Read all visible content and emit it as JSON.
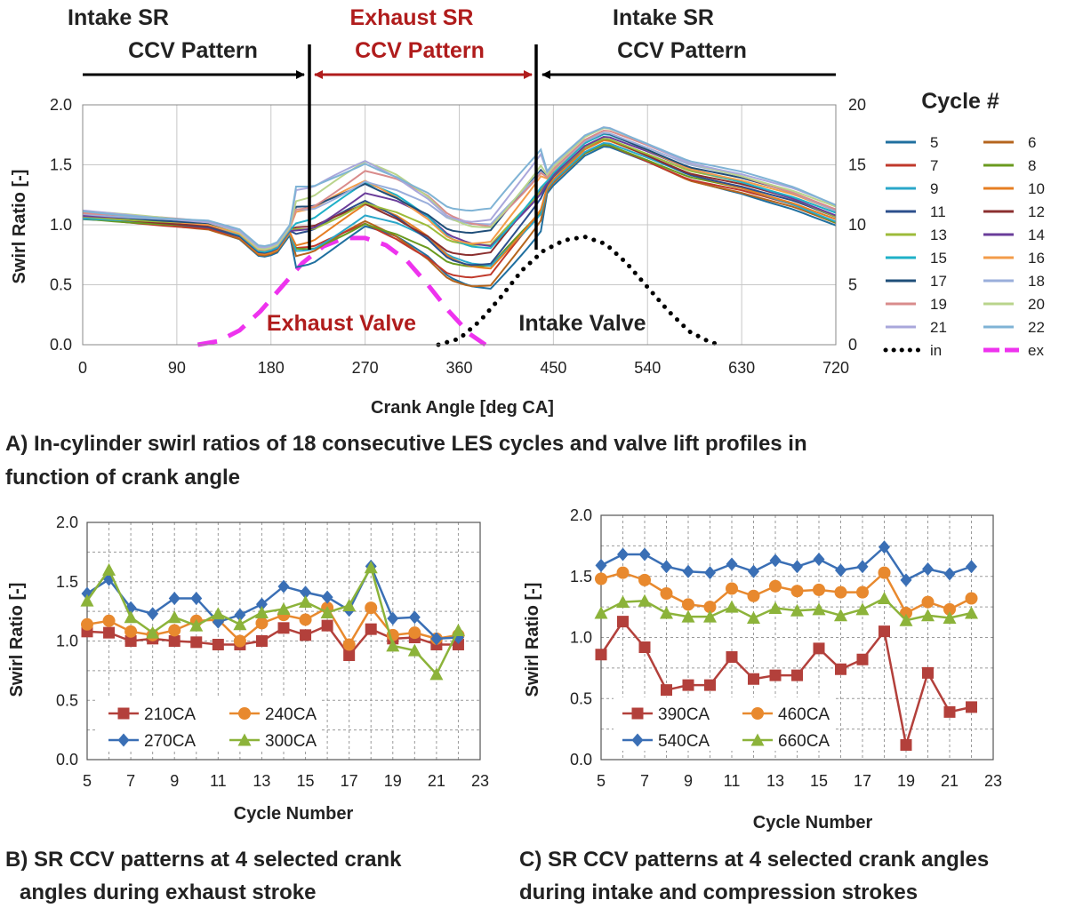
{
  "colors": {
    "black": "#000000",
    "red_dark": "#b01c1c",
    "magenta": "#ee33ee",
    "grid": "#8a8a8a",
    "s390": "#b3403b",
    "s460": "#e8892e",
    "s540": "#3a6fb5",
    "s660": "#8cb33a",
    "cycle_palette": [
      "#1f6f9f",
      "#b5651d",
      "#c0392b",
      "#6a9a1f",
      "#2aa7c9",
      "#e67e22",
      "#2c4f8c",
      "#8b2f2f",
      "#9dbb3a",
      "#6a3d9a",
      "#1fb0c7",
      "#f39c4a",
      "#1f4e79",
      "#9aaedb",
      "#d98c8c",
      "#b9d48c",
      "#a9a7db",
      "#7fb3d5"
    ]
  },
  "panelA": {
    "top_labels": [
      {
        "line1": "Intake SR",
        "line2": "CCV Pattern",
        "color": "#000000"
      },
      {
        "line1": "Exhaust SR",
        "line2": "CCV Pattern",
        "color": "#b01c1c"
      },
      {
        "line1": "Intake SR",
        "line2": "CCV Pattern",
        "color": "#000000"
      }
    ],
    "exhaust_valve_label": "Exhaust Valve",
    "intake_valve_label": "Intake Valve",
    "legend_title": "Cycle #",
    "caption_line1": "A) In-cylinder swirl ratios of 18 consecutive LES cycles and valve lift profiles in",
    "caption_line2": "function of crank angle"
  },
  "panelB": {
    "caption_line1": "B) SR CCV patterns at 4 selected crank",
    "caption_line2": "angles during exhaust stroke"
  },
  "panelC": {
    "caption_line1": "C) SR CCV patterns at 4 selected crank angles",
    "caption_line2": "during intake and compression strokes"
  },
  "chart_data": [
    {
      "type": "line",
      "xlabel": "Crank Angle  [deg CA]",
      "ylabel": "Swirl Ratio  [-]",
      "xlim": [
        0,
        720
      ],
      "ylim": [
        0,
        2.0
      ],
      "y2lim": [
        0,
        20
      ],
      "xticks": [
        0,
        90,
        180,
        270,
        360,
        450,
        540,
        630,
        720
      ],
      "xtick_labels": [
        "0",
        "90",
        "180",
        "270",
        "360",
        "450",
        "540",
        "630",
        "720"
      ],
      "yticks": [
        0,
        0.5,
        1.0,
        1.5,
        2.0
      ],
      "ytick_labels": [
        "0.0",
        "0.5",
        "1.0",
        "1.5",
        "2.0"
      ],
      "y2ticks": [
        0,
        5,
        10,
        15,
        20
      ],
      "y2tick_labels": [
        "0",
        "5",
        "10",
        "15",
        "20"
      ],
      "grid": true,
      "legend_position": "right",
      "cycle_x": [
        0,
        60,
        120,
        150,
        170,
        185,
        200,
        220,
        250,
        270,
        300,
        330,
        350,
        370,
        390,
        410,
        430,
        450,
        480,
        500,
        540,
        580,
        630,
        680,
        720
      ],
      "cycle_base": [
        1.08,
        1.04,
        1.0,
        0.92,
        0.77,
        0.8,
        0.98,
        1.0,
        1.15,
        1.25,
        1.15,
        1.0,
        0.85,
        0.8,
        0.8,
        1.0,
        1.2,
        1.42,
        1.66,
        1.74,
        1.6,
        1.45,
        1.35,
        1.22,
        1.08
      ],
      "series": [
        {
          "name": "5"
        },
        {
          "name": "6"
        },
        {
          "name": "7"
        },
        {
          "name": "8"
        },
        {
          "name": "9"
        },
        {
          "name": "10"
        },
        {
          "name": "11"
        },
        {
          "name": "12"
        },
        {
          "name": "13"
        },
        {
          "name": "14"
        },
        {
          "name": "15"
        },
        {
          "name": "16"
        },
        {
          "name": "17"
        },
        {
          "name": "18"
        },
        {
          "name": "19"
        },
        {
          "name": "20"
        },
        {
          "name": "21"
        },
        {
          "name": "22"
        }
      ],
      "valve_lift": [
        {
          "name": "in",
          "axis": "y2",
          "x": [
            340,
            360,
            380,
            400,
            420,
            440,
            460,
            480,
            500,
            520,
            540,
            560,
            580,
            600,
            610
          ],
          "y": [
            0,
            0.5,
            2.0,
            4.0,
            6.2,
            7.8,
            8.7,
            9.0,
            8.4,
            6.8,
            4.8,
            2.8,
            1.1,
            0.2,
            0
          ]
        },
        {
          "name": "ex",
          "axis": "y2",
          "x": [
            110,
            130,
            150,
            170,
            190,
            210,
            230,
            250,
            270,
            290,
            310,
            330,
            350,
            370,
            385
          ],
          "y": [
            0,
            0.3,
            1.2,
            2.8,
            4.8,
            6.8,
            8.2,
            8.9,
            8.9,
            8.3,
            7.0,
            5.0,
            2.8,
            0.9,
            0
          ]
        }
      ],
      "boundaries_deg": [
        222,
        435
      ]
    },
    {
      "type": "line",
      "xlabel": "Cycle Number",
      "ylabel": "Swirl Ratio  [-]",
      "xlim": [
        5,
        23
      ],
      "ylim": [
        0,
        2.0
      ],
      "xticks": [
        5,
        7,
        9,
        11,
        13,
        15,
        17,
        19,
        21,
        23
      ],
      "xtick_labels": [
        "5",
        "7",
        "9",
        "11",
        "13",
        "15",
        "17",
        "19",
        "21",
        "23"
      ],
      "yticks": [
        0,
        0.5,
        1.0,
        1.5,
        2.0
      ],
      "ytick_labels": [
        "0.0",
        "0.5",
        "1.0",
        "1.5",
        "2.0"
      ],
      "grid": true,
      "legend_position": "bottom-left",
      "x": [
        5,
        6,
        7,
        8,
        9,
        10,
        11,
        12,
        13,
        14,
        15,
        16,
        17,
        18,
        19,
        20,
        21,
        22
      ],
      "series": [
        {
          "name": "210CA",
          "marker": "square",
          "color": "#b3403b",
          "values": [
            1.08,
            1.07,
            1.0,
            1.02,
            1.0,
            0.99,
            0.97,
            0.97,
            1.0,
            1.11,
            1.05,
            1.13,
            0.88,
            1.1,
            1.02,
            1.03,
            0.97,
            0.97
          ]
        },
        {
          "name": "240CA",
          "marker": "circle",
          "color": "#e8892e",
          "values": [
            1.14,
            1.17,
            1.08,
            1.05,
            1.09,
            1.17,
            1.18,
            1.0,
            1.15,
            1.22,
            1.18,
            1.28,
            0.97,
            1.28,
            1.05,
            1.07,
            1.02,
            1.05
          ]
        },
        {
          "name": "270CA",
          "marker": "diamond",
          "color": "#3a6fb5",
          "values": [
            1.4,
            1.52,
            1.28,
            1.23,
            1.36,
            1.36,
            1.16,
            1.22,
            1.31,
            1.46,
            1.41,
            1.37,
            1.26,
            1.63,
            1.19,
            1.2,
            1.02,
            1.03
          ]
        },
        {
          "name": "300CA",
          "marker": "triangle",
          "color": "#8cb33a",
          "values": [
            1.34,
            1.6,
            1.2,
            1.07,
            1.2,
            1.13,
            1.23,
            1.14,
            1.24,
            1.27,
            1.33,
            1.24,
            1.3,
            1.62,
            0.96,
            0.92,
            0.72,
            1.09
          ]
        }
      ]
    },
    {
      "type": "line",
      "xlabel": "Cycle Number",
      "ylabel": "Swirl Ratio  [-]",
      "xlim": [
        5,
        23
      ],
      "ylim": [
        0,
        2.0
      ],
      "xticks": [
        5,
        7,
        9,
        11,
        13,
        15,
        17,
        19,
        21,
        23
      ],
      "xtick_labels": [
        "5",
        "7",
        "9",
        "11",
        "13",
        "15",
        "17",
        "19",
        "21",
        "23"
      ],
      "yticks": [
        0,
        0.5,
        1.0,
        1.5,
        2.0
      ],
      "ytick_labels": [
        "0.0",
        "0.5",
        "1.0",
        "1.5",
        "2.0"
      ],
      "grid": true,
      "legend_position": "bottom-left",
      "x": [
        5,
        6,
        7,
        8,
        9,
        10,
        11,
        12,
        13,
        14,
        15,
        16,
        17,
        18,
        19,
        20,
        21,
        22
      ],
      "series": [
        {
          "name": "390CA",
          "marker": "square",
          "color": "#b3403b",
          "values": [
            0.86,
            1.13,
            0.92,
            0.57,
            0.61,
            0.61,
            0.84,
            0.66,
            0.69,
            0.69,
            0.91,
            0.74,
            0.82,
            1.05,
            0.12,
            0.71,
            0.39,
            0.43
          ]
        },
        {
          "name": "460CA",
          "marker": "circle",
          "color": "#e8892e",
          "values": [
            1.48,
            1.53,
            1.47,
            1.36,
            1.27,
            1.25,
            1.4,
            1.34,
            1.42,
            1.38,
            1.39,
            1.37,
            1.37,
            1.53,
            1.2,
            1.29,
            1.23,
            1.32
          ]
        },
        {
          "name": "540CA",
          "marker": "diamond",
          "color": "#3a6fb5",
          "values": [
            1.59,
            1.68,
            1.68,
            1.58,
            1.54,
            1.53,
            1.6,
            1.54,
            1.63,
            1.58,
            1.64,
            1.55,
            1.58,
            1.74,
            1.47,
            1.56,
            1.52,
            1.58
          ]
        },
        {
          "name": "660CA",
          "marker": "triangle",
          "color": "#8cb33a",
          "values": [
            1.2,
            1.29,
            1.3,
            1.2,
            1.17,
            1.17,
            1.25,
            1.16,
            1.24,
            1.22,
            1.23,
            1.18,
            1.23,
            1.32,
            1.14,
            1.18,
            1.16,
            1.2
          ]
        }
      ]
    }
  ]
}
